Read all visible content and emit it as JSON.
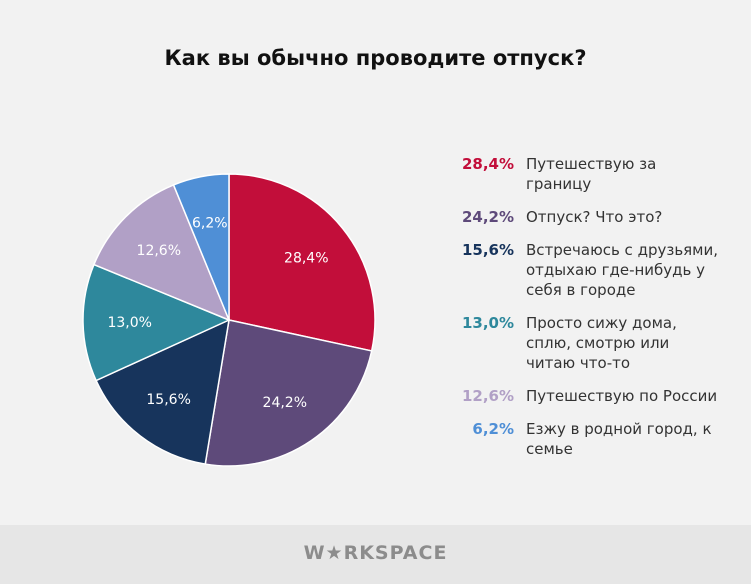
{
  "chart_data": {
    "type": "pie",
    "title": "Как вы обычно проводите отпуск?",
    "start": "top",
    "direction": "clockwise",
    "slices": [
      {
        "label": "Путешествую за границу",
        "value": 28.4,
        "display": "28,4%",
        "color": "#c20e3a"
      },
      {
        "label": "Отпуск? Что это?",
        "value": 24.2,
        "display": "24,2%",
        "color": "#5e4a7a"
      },
      {
        "label": "Встречаюсь с друзьями, отдыхаю где-нибудь у себя в городе",
        "value": 15.6,
        "display": "15,6%",
        "color": "#17345c"
      },
      {
        "label": "Просто сижу дома, сплю, смотрю или читаю что-то",
        "value": 13.0,
        "display": "13,0%",
        "color": "#2e889c"
      },
      {
        "label": "Путешествую по России",
        "value": 12.6,
        "display": "12,6%",
        "color": "#b1a0c6"
      },
      {
        "label": "Езжу в родной город, к семье",
        "value": 6.2,
        "display": "6,2%",
        "color": "#4f8fd6"
      }
    ],
    "legend": "right"
  },
  "footer": {
    "logo": "WORKSPACE"
  }
}
